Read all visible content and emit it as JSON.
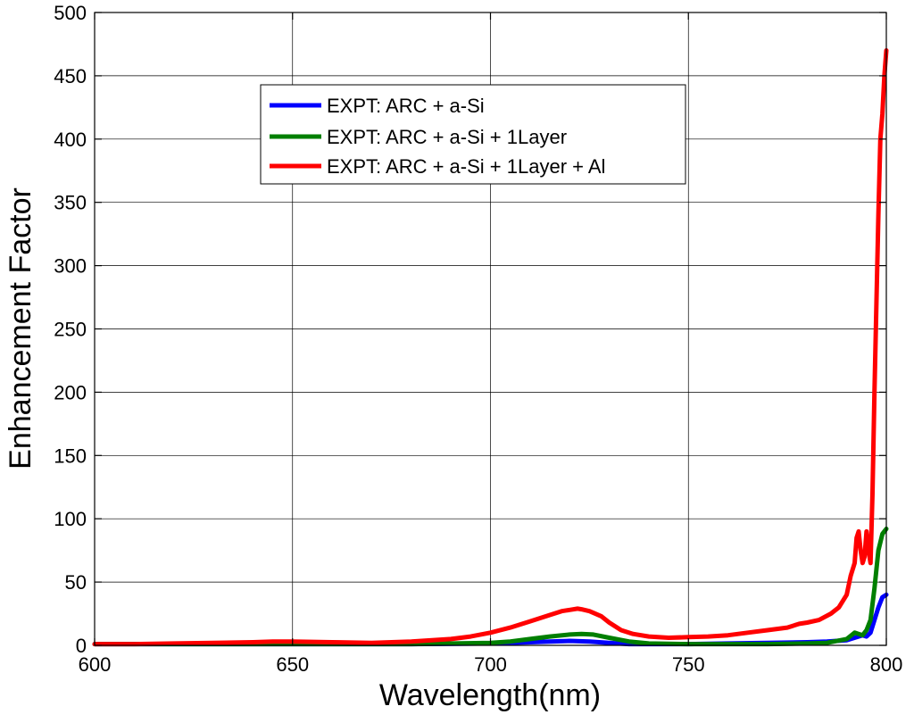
{
  "chart_data": {
    "type": "line",
    "title": "",
    "xlabel": "Wavelength(nm)",
    "ylabel": "Enhancement Factor",
    "xlim": [
      600,
      800
    ],
    "ylim": [
      0,
      500
    ],
    "xticks": [
      600,
      650,
      700,
      750,
      800
    ],
    "yticks": [
      0,
      50,
      100,
      150,
      200,
      250,
      300,
      350,
      400,
      450,
      500
    ],
    "grid": true,
    "legend_position": "upper-center-left",
    "series": [
      {
        "name": "EXPT: ARC + a-Si",
        "color": "#0000ff",
        "x": [
          600,
          620,
          640,
          660,
          680,
          700,
          710,
          715,
          720,
          725,
          730,
          735,
          740,
          750,
          760,
          770,
          780,
          785,
          790,
          792,
          794,
          795,
          796,
          797,
          798,
          799,
          800
        ],
        "y": [
          1,
          1,
          1,
          1,
          1,
          1.5,
          2.5,
          3,
          3.5,
          3,
          2,
          1,
          1,
          1,
          1.5,
          2,
          2.5,
          3,
          4,
          6,
          8,
          7,
          10,
          20,
          30,
          38,
          40
        ]
      },
      {
        "name": "EXPT: ARC + a-Si + 1Layer",
        "color": "#007f00",
        "x": [
          600,
          620,
          640,
          660,
          680,
          700,
          705,
          710,
          715,
          720,
          723,
          726,
          730,
          735,
          740,
          750,
          760,
          770,
          780,
          785,
          790,
          792,
          794,
          795,
          796,
          797,
          798,
          799,
          800
        ],
        "y": [
          1,
          1,
          1,
          1,
          1,
          2,
          3,
          5,
          7,
          8.5,
          9,
          8.5,
          6,
          3,
          1.5,
          1,
          1,
          1,
          1.5,
          2,
          5,
          10,
          8,
          12,
          20,
          45,
          75,
          88,
          92
        ]
      },
      {
        "name": "EXPT: ARC + a-Si + 1Layer + Al",
        "color": "#ff0000",
        "x": [
          600,
          610,
          620,
          630,
          640,
          645,
          650,
          660,
          670,
          675,
          680,
          690,
          695,
          700,
          705,
          710,
          715,
          718,
          720,
          722,
          723,
          725,
          728,
          730,
          733,
          736,
          740,
          745,
          750,
          755,
          760,
          765,
          770,
          775,
          778,
          780,
          783,
          786,
          788,
          790,
          791,
          792,
          792.5,
          793,
          793.5,
          794,
          794.5,
          795,
          795.5,
          796,
          796.5,
          797,
          797.5,
          798,
          798.5,
          799,
          799.5,
          800
        ],
        "y": [
          1,
          1,
          1.5,
          2,
          2.5,
          3,
          3,
          2.5,
          2,
          2.5,
          3,
          5,
          7,
          10,
          14,
          19,
          24,
          27,
          28,
          29,
          28.5,
          27,
          23,
          18,
          12,
          9,
          7,
          6,
          6.5,
          7,
          8,
          10,
          12,
          14,
          17,
          18,
          20,
          25,
          30,
          40,
          55,
          65,
          85,
          90,
          75,
          65,
          70,
          90,
          75,
          65,
          120,
          200,
          270,
          340,
          400,
          420,
          450,
          470
        ]
      }
    ]
  }
}
